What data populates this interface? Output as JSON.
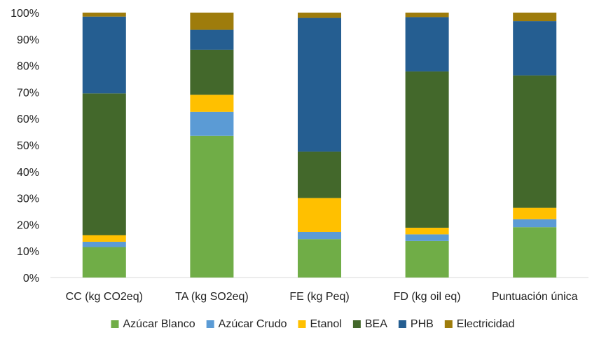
{
  "chart_data": {
    "type": "bar",
    "stacked": true,
    "percent_stacked": true,
    "categories": [
      "CC (kg CO2eq)",
      "TA (kg SO2eq)",
      "FE (kg Peq)",
      "FD (kg oil eq)",
      "Puntuación única"
    ],
    "ylim": [
      0,
      100
    ],
    "yticks": [
      "0%",
      "10%",
      "20%",
      "30%",
      "40%",
      "50%",
      "60%",
      "70%",
      "80%",
      "90%",
      "100%"
    ],
    "grid": false,
    "legend_position": "bottom",
    "series": [
      {
        "name": "Azúcar Blanco",
        "color": "#70AD47",
        "values": [
          11.5,
          53.5,
          14.5,
          13.8,
          19.0
        ]
      },
      {
        "name": "Azúcar Crudo",
        "color": "#5B9BD5",
        "values": [
          2.0,
          9.0,
          2.7,
          2.5,
          3.0
        ]
      },
      {
        "name": "Etanol",
        "color": "#FFC000",
        "values": [
          2.5,
          6.5,
          12.8,
          2.5,
          4.3
        ]
      },
      {
        "name": "BEA",
        "color": "#43682B",
        "values": [
          53.5,
          17.0,
          17.5,
          59.0,
          50.0
        ]
      },
      {
        "name": "PHB",
        "color": "#255E91",
        "values": [
          29.0,
          7.5,
          50.5,
          20.5,
          20.5
        ]
      },
      {
        "name": "Electricidad",
        "color": "#9E7C0C",
        "values": [
          1.5,
          6.5,
          2.0,
          1.7,
          3.2
        ]
      }
    ]
  }
}
